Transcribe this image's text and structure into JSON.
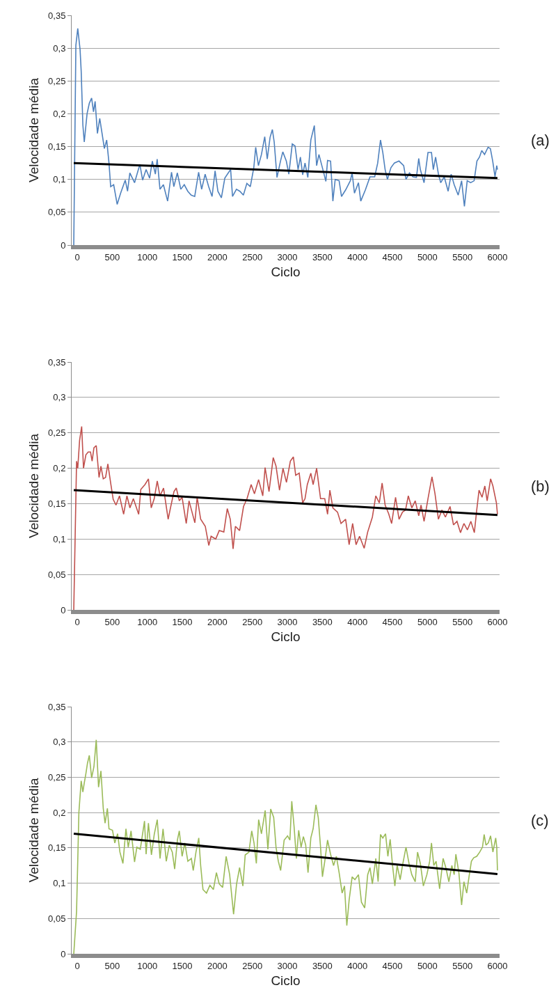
{
  "chart_data": [
    {
      "type": "line",
      "xlabel": "Ciclo",
      "ylabel": "Velocidade média",
      "annotations": [
        "(a)"
      ],
      "xlim": [
        -80,
        6030
      ],
      "xticks": [
        0,
        500,
        1000,
        1500,
        2000,
        2500,
        3000,
        3500,
        4000,
        4500,
        5000,
        5500,
        6000
      ],
      "ylim": [
        0,
        0.35
      ],
      "yticks": [
        {
          "value": 0,
          "label": "0"
        },
        {
          "value": 0.05,
          "label": "0,05"
        },
        {
          "value": 0.1,
          "label": "0,1"
        },
        {
          "value": 0.15,
          "label": "0,15"
        },
        {
          "value": 0.2,
          "label": "0,2"
        },
        {
          "value": 0.25,
          "label": "0,25"
        },
        {
          "value": 0.3,
          "label": "0,3"
        },
        {
          "value": 0.35,
          "label": "0,35"
        }
      ],
      "grid": "y",
      "series": [
        {
          "color": "#4f81bd",
          "x": [
            -50,
            -20,
            7,
            40,
            56,
            80,
            100,
            140,
            172,
            205,
            232,
            255,
            288,
            321,
            354,
            387,
            420,
            453,
            477,
            520,
            570,
            619,
            685,
            718,
            751,
            818,
            894,
            933,
            983,
            1033,
            1072,
            1115,
            1141,
            1181,
            1230,
            1290,
            1346,
            1379,
            1429,
            1478,
            1528,
            1578,
            1627,
            1677,
            1733,
            1776,
            1826,
            1876,
            1925,
            1968,
            2008,
            2058,
            2107,
            2157,
            2190,
            2217,
            2273,
            2322,
            2372,
            2422,
            2471,
            2521,
            2548,
            2587,
            2630,
            2677,
            2713,
            2753,
            2786,
            2812,
            2852,
            2902,
            2935,
            2985,
            3021,
            3070,
            3110,
            3153,
            3186,
            3219,
            3252,
            3292,
            3335,
            3385,
            3418,
            3451,
            3517,
            3550,
            3574,
            3617,
            3650,
            3683,
            3739,
            3773,
            3832,
            3899,
            3925,
            3958,
            4015,
            4048,
            4114,
            4180,
            4247,
            4290,
            4330,
            4363,
            4396,
            4429,
            4479,
            4528,
            4594,
            4661,
            4694,
            4743,
            4793,
            4843,
            4876,
            4899,
            4952,
            5008,
            5058,
            5084,
            5117,
            5157,
            5190,
            5240,
            5296,
            5339,
            5382,
            5439,
            5488,
            5528,
            5568,
            5617,
            5667,
            5707,
            5743,
            5776,
            5816,
            5866,
            5899,
            5932,
            5965,
            5990,
            6000
          ],
          "values": [
            0,
            0.304,
            0.33,
            0.298,
            0.265,
            0.183,
            0.157,
            0.2,
            0.216,
            0.224,
            0.203,
            0.219,
            0.17,
            0.193,
            0.17,
            0.147,
            0.16,
            0.125,
            0.089,
            0.092,
            0.062,
            0.079,
            0.099,
            0.082,
            0.11,
            0.095,
            0.123,
            0.099,
            0.115,
            0.102,
            0.128,
            0.108,
            0.131,
            0.085,
            0.092,
            0.067,
            0.111,
            0.089,
            0.11,
            0.085,
            0.092,
            0.082,
            0.076,
            0.074,
            0.111,
            0.085,
            0.108,
            0.089,
            0.074,
            0.113,
            0.082,
            0.072,
            0.102,
            0.11,
            0.115,
            0.074,
            0.085,
            0.082,
            0.076,
            0.094,
            0.089,
            0.118,
            0.149,
            0.121,
            0.138,
            0.165,
            0.131,
            0.164,
            0.176,
            0.157,
            0.103,
            0.128,
            0.142,
            0.128,
            0.108,
            0.154,
            0.151,
            0.115,
            0.134,
            0.107,
            0.125,
            0.103,
            0.16,
            0.182,
            0.121,
            0.138,
            0.111,
            0.097,
            0.129,
            0.128,
            0.067,
            0.1,
            0.098,
            0.074,
            0.084,
            0.098,
            0.11,
            0.079,
            0.095,
            0.067,
            0.084,
            0.104,
            0.104,
            0.125,
            0.16,
            0.141,
            0.115,
            0.1,
            0.118,
            0.125,
            0.128,
            0.121,
            0.1,
            0.11,
            0.104,
            0.103,
            0.132,
            0.115,
            0.095,
            0.141,
            0.141,
            0.115,
            0.134,
            0.108,
            0.095,
            0.104,
            0.082,
            0.108,
            0.092,
            0.076,
            0.098,
            0.059,
            0.098,
            0.095,
            0.098,
            0.128,
            0.134,
            0.144,
            0.138,
            0.149,
            0.147,
            0.128,
            0.104,
            0.121,
            0.115
          ]
        },
        {
          "type": "line",
          "color": "#000000",
          "x": [
            -50,
            6000
          ],
          "values": [
            0.125,
            0.102
          ]
        }
      ]
    },
    {
      "type": "line",
      "xlabel": "Ciclo",
      "ylabel": "Velocidade média",
      "annotations": [
        "(b)"
      ],
      "xlim": [
        -80,
        6030
      ],
      "xticks": [
        0,
        500,
        1000,
        1500,
        2000,
        2500,
        3000,
        3500,
        4000,
        4500,
        5000,
        5500,
        6000
      ],
      "ylim": [
        0,
        0.35
      ],
      "yticks": [
        {
          "value": 0,
          "label": "0"
        },
        {
          "value": 0.05,
          "label": "0,05"
        },
        {
          "value": 0.1,
          "label": "0,1"
        },
        {
          "value": 0.15,
          "label": "0,15"
        },
        {
          "value": 0.2,
          "label": "0,2"
        },
        {
          "value": 0.25,
          "label": "0,25"
        },
        {
          "value": 0.3,
          "label": "0,3"
        },
        {
          "value": 0.35,
          "label": "0,35"
        }
      ],
      "grid": "y",
      "series": [
        {
          "color": "#c0504d",
          "x": [
            -50,
            -20,
            -10,
            7,
            33,
            63,
            89,
            123,
            156,
            189,
            212,
            238,
            271,
            311,
            338,
            371,
            404,
            437,
            480,
            513,
            553,
            603,
            662,
            709,
            752,
            801,
            877,
            907,
            967,
            1016,
            1056,
            1099,
            1142,
            1182,
            1232,
            1298,
            1331,
            1381,
            1414,
            1457,
            1497,
            1556,
            1596,
            1679,
            1712,
            1762,
            1828,
            1878,
            1911,
            1977,
            2027,
            2093,
            2142,
            2185,
            2225,
            2258,
            2318,
            2374,
            2424,
            2483,
            2530,
            2589,
            2649,
            2682,
            2738,
            2798,
            2838,
            2888,
            2938,
            2987,
            3043,
            3086,
            3119,
            3169,
            3219,
            3252,
            3285,
            3335,
            3368,
            3418,
            3474,
            3534,
            3574,
            3607,
            3650,
            3716,
            3766,
            3832,
            3882,
            3932,
            3981,
            4031,
            4097,
            4147,
            4214,
            4263,
            4313,
            4353,
            4396,
            4446,
            4489,
            4545,
            4595,
            4644,
            4687,
            4727,
            4777,
            4826,
            4876,
            4909,
            4952,
            5008,
            5065,
            5108,
            5157,
            5207,
            5257,
            5323,
            5372,
            5422,
            5472,
            5521,
            5571,
            5621,
            5670,
            5704,
            5737,
            5780,
            5820,
            5853,
            5902,
            5935,
            5985,
            6000
          ],
          "values": [
            0,
            0.157,
            0.21,
            0.2,
            0.239,
            0.259,
            0.2,
            0.219,
            0.223,
            0.223,
            0.21,
            0.229,
            0.232,
            0.187,
            0.203,
            0.185,
            0.187,
            0.206,
            0.177,
            0.156,
            0.148,
            0.161,
            0.135,
            0.161,
            0.144,
            0.157,
            0.135,
            0.17,
            0.177,
            0.185,
            0.144,
            0.157,
            0.182,
            0.161,
            0.172,
            0.128,
            0.144,
            0.167,
            0.172,
            0.154,
            0.159,
            0.122,
            0.154,
            0.123,
            0.159,
            0.128,
            0.118,
            0.091,
            0.104,
            0.1,
            0.112,
            0.11,
            0.143,
            0.128,
            0.086,
            0.118,
            0.112,
            0.146,
            0.157,
            0.177,
            0.164,
            0.184,
            0.161,
            0.201,
            0.167,
            0.215,
            0.203,
            0.169,
            0.2,
            0.18,
            0.21,
            0.216,
            0.19,
            0.193,
            0.151,
            0.157,
            0.177,
            0.193,
            0.177,
            0.2,
            0.157,
            0.157,
            0.135,
            0.169,
            0.144,
            0.138,
            0.122,
            0.128,
            0.092,
            0.122,
            0.092,
            0.104,
            0.087,
            0.11,
            0.131,
            0.161,
            0.151,
            0.179,
            0.148,
            0.136,
            0.122,
            0.159,
            0.128,
            0.138,
            0.141,
            0.161,
            0.144,
            0.154,
            0.133,
            0.148,
            0.125,
            0.157,
            0.188,
            0.164,
            0.128,
            0.141,
            0.131,
            0.146,
            0.12,
            0.125,
            0.109,
            0.122,
            0.113,
            0.125,
            0.109,
            0.141,
            0.169,
            0.159,
            0.175,
            0.154,
            0.185,
            0.175,
            0.151,
            0.135
          ]
        },
        {
          "type": "line",
          "color": "#000000",
          "x": [
            -50,
            6000
          ],
          "values": [
            0.169,
            0.134
          ]
        }
      ]
    },
    {
      "type": "line",
      "xlabel": "Ciclo",
      "ylabel": "Velocidade média",
      "annotations": [
        "(c)"
      ],
      "xlim": [
        -80,
        6030
      ],
      "xticks": [
        0,
        500,
        1000,
        1500,
        2000,
        2500,
        3000,
        3500,
        4000,
        4500,
        5000,
        5500,
        6000
      ],
      "ylim": [
        0,
        0.35
      ],
      "yticks": [
        {
          "value": 0,
          "label": "0"
        },
        {
          "value": 0.05,
          "label": "0,05"
        },
        {
          "value": 0.1,
          "label": "0,1"
        },
        {
          "value": 0.15,
          "label": "0,15"
        },
        {
          "value": 0.2,
          "label": "0,2"
        },
        {
          "value": 0.25,
          "label": "0,25"
        },
        {
          "value": 0.3,
          "label": "0,3"
        },
        {
          "value": 0.35,
          "label": "0,35"
        }
      ],
      "grid": "y",
      "series": [
        {
          "color": "#9bbb59",
          "x": [
            -50,
            -10,
            23,
            56,
            80,
            100,
            123,
            146,
            172,
            205,
            238,
            271,
            304,
            338,
            371,
            397,
            430,
            453,
            503,
            536,
            576,
            609,
            652,
            695,
            728,
            768,
            818,
            851,
            900,
            960,
            983,
            1016,
            1059,
            1099,
            1142,
            1182,
            1225,
            1271,
            1314,
            1357,
            1391,
            1430,
            1457,
            1497,
            1536,
            1579,
            1629,
            1656,
            1695,
            1735,
            1762,
            1795,
            1845,
            1894,
            1944,
            1987,
            2027,
            2076,
            2126,
            2176,
            2232,
            2275,
            2318,
            2365,
            2398,
            2451,
            2491,
            2524,
            2557,
            2590,
            2630,
            2683,
            2722,
            2762,
            2805,
            2838,
            2871,
            2904,
            2954,
            3003,
            3036,
            3063,
            3096,
            3129,
            3162,
            3196,
            3229,
            3262,
            3295,
            3335,
            3368,
            3408,
            3441,
            3474,
            3501,
            3534,
            3574,
            3617,
            3660,
            3700,
            3739,
            3782,
            3816,
            3849,
            3882,
            3925,
            3965,
            4015,
            4058,
            4104,
            4147,
            4180,
            4214,
            4263,
            4296,
            4330,
            4363,
            4402,
            4435,
            4468,
            4502,
            4535,
            4568,
            4611,
            4644,
            4694,
            4737,
            4777,
            4826,
            4859,
            4899,
            4942,
            4992,
            5032,
            5058,
            5091,
            5124,
            5174,
            5224,
            5263,
            5306,
            5349,
            5382,
            5406,
            5449,
            5488,
            5521,
            5561,
            5594,
            5628,
            5661,
            5704,
            5747,
            5786,
            5810,
            5836,
            5869,
            5902,
            5935,
            5975,
            5990,
            6000
          ],
          "values": [
            0,
            0.06,
            0.2,
            0.245,
            0.229,
            0.242,
            0.255,
            0.27,
            0.281,
            0.249,
            0.265,
            0.303,
            0.236,
            0.259,
            0.206,
            0.185,
            0.206,
            0.177,
            0.175,
            0.157,
            0.17,
            0.144,
            0.128,
            0.177,
            0.151,
            0.174,
            0.13,
            0.151,
            0.148,
            0.188,
            0.141,
            0.185,
            0.14,
            0.169,
            0.19,
            0.135,
            0.177,
            0.131,
            0.154,
            0.144,
            0.12,
            0.161,
            0.174,
            0.138,
            0.157,
            0.131,
            0.135,
            0.118,
            0.144,
            0.164,
            0.125,
            0.091,
            0.086,
            0.097,
            0.091,
            0.115,
            0.099,
            0.094,
            0.138,
            0.112,
            0.056,
            0.099,
            0.122,
            0.096,
            0.14,
            0.144,
            0.174,
            0.157,
            0.128,
            0.19,
            0.17,
            0.203,
            0.148,
            0.205,
            0.193,
            0.151,
            0.131,
            0.118,
            0.161,
            0.167,
            0.161,
            0.216,
            0.18,
            0.135,
            0.175,
            0.151,
            0.166,
            0.154,
            0.115,
            0.164,
            0.177,
            0.211,
            0.193,
            0.151,
            0.109,
            0.131,
            0.161,
            0.141,
            0.125,
            0.138,
            0.115,
            0.086,
            0.096,
            0.04,
            0.076,
            0.109,
            0.105,
            0.112,
            0.073,
            0.065,
            0.112,
            0.122,
            0.099,
            0.135,
            0.102,
            0.169,
            0.164,
            0.17,
            0.138,
            0.162,
            0.125,
            0.096,
            0.125,
            0.105,
            0.125,
            0.151,
            0.128,
            0.112,
            0.102,
            0.144,
            0.128,
            0.096,
            0.112,
            0.131,
            0.157,
            0.125,
            0.131,
            0.092,
            0.135,
            0.122,
            0.102,
            0.125,
            0.112,
            0.141,
            0.115,
            0.069,
            0.102,
            0.086,
            0.109,
            0.131,
            0.136,
            0.138,
            0.144,
            0.151,
            0.169,
            0.154,
            0.157,
            0.167,
            0.144,
            0.164,
            0.151,
            0.118
          ]
        },
        {
          "type": "line",
          "color": "#000000",
          "x": [
            -50,
            6000
          ],
          "values": [
            0.17,
            0.113
          ]
        }
      ]
    }
  ]
}
